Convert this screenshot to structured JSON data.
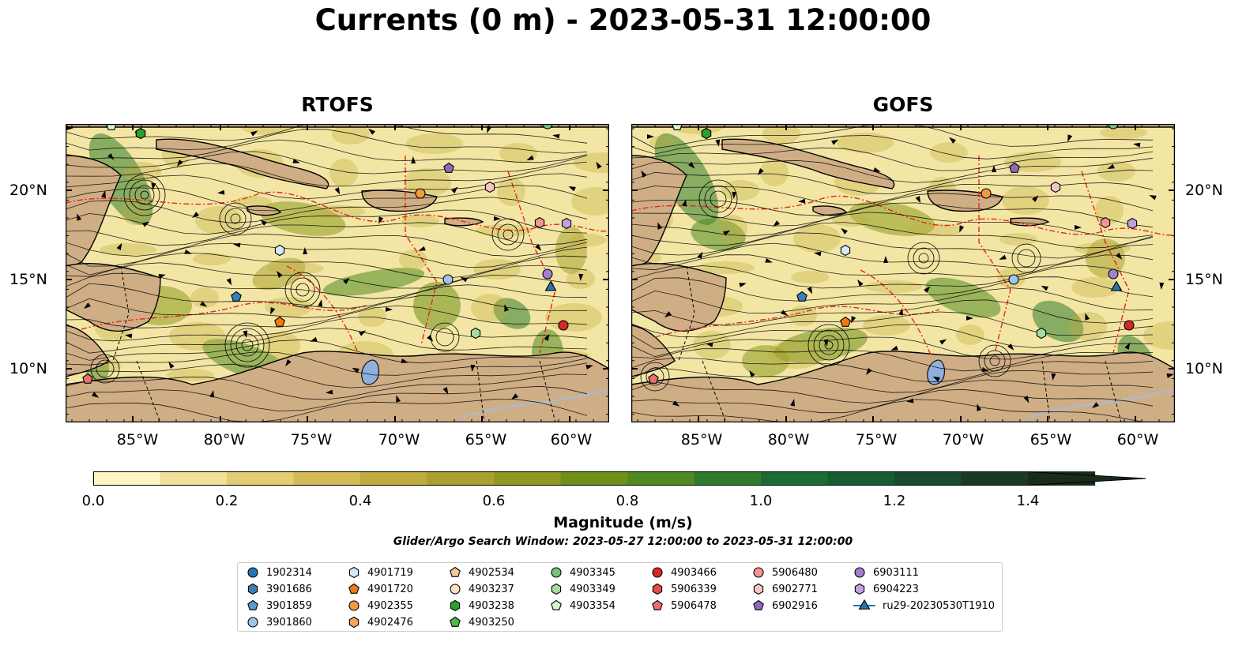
{
  "figure": {
    "title": "Currents (0 m) - 2023-05-31 12:00:00"
  },
  "panels": [
    {
      "title": "RTOFS"
    },
    {
      "title": "GOFS"
    }
  ],
  "axes": {
    "lat_ticks": [
      "20°N",
      "15°N",
      "10°N"
    ],
    "lon_ticks": [
      "85°W",
      "80°W",
      "75°W",
      "70°W",
      "65°W",
      "60°W"
    ]
  },
  "colorbar": {
    "label": "Magnitude (m/s)",
    "ticks": [
      "0.0",
      "0.2",
      "0.4",
      "0.6",
      "0.8",
      "1.0",
      "1.2",
      "1.4"
    ],
    "colors": [
      "#fff5c2",
      "#f0e098",
      "#e3cc72",
      "#d5bb55",
      "#c0ab3e",
      "#a9a030",
      "#8d9a1f",
      "#6f9017",
      "#4f8a20",
      "#2f7b2c",
      "#1a6c33",
      "#145d32",
      "#174a30",
      "#1a3a27",
      "#1a2b1c"
    ]
  },
  "search_window": "Glider/Argo Search Window: 2023-05-27 12:00:00 to 2023-05-31 12:00:00",
  "legend": {
    "columns": [
      [
        {
          "label": "1902314",
          "marker": "circle",
          "color": "#1f77b4"
        },
        {
          "label": "3901686",
          "marker": "hexagon",
          "color": "#3a7fb5"
        },
        {
          "label": "3901859",
          "marker": "pentagon",
          "color": "#5b9bd1"
        },
        {
          "label": "3901860",
          "marker": "circle",
          "color": "#9ec6e8"
        }
      ],
      [
        {
          "label": "4901719",
          "marker": "hexagon",
          "color": "#d4e9f9"
        },
        {
          "label": "4901720",
          "marker": "pentagon",
          "color": "#ee7a13"
        },
        {
          "label": "4902355",
          "marker": "circle",
          "color": "#f39a3e"
        },
        {
          "label": "4902476",
          "marker": "hexagon",
          "color": "#f6a45a"
        }
      ],
      [
        {
          "label": "4902534",
          "marker": "pentagon",
          "color": "#f8c49a"
        },
        {
          "label": "4903237",
          "marker": "circle",
          "color": "#fde0c2"
        },
        {
          "label": "4903238",
          "marker": "hexagon",
          "color": "#2ca02c"
        },
        {
          "label": "4903250",
          "marker": "pentagon",
          "color": "#4bb84b"
        }
      ],
      [
        {
          "label": "4903345",
          "marker": "circle",
          "color": "#74c476"
        },
        {
          "label": "4903349",
          "marker": "hexagon",
          "color": "#a6dd9c"
        },
        {
          "label": "4903354",
          "marker": "pentagon",
          "color": "#d6f5cf"
        }
      ],
      [
        {
          "label": "4903466",
          "marker": "circle",
          "color": "#d62728"
        },
        {
          "label": "5906339",
          "marker": "hexagon",
          "color": "#e34a4a"
        },
        {
          "label": "5906478",
          "marker": "pentagon",
          "color": "#ec6f6f"
        }
      ],
      [
        {
          "label": "5906480",
          "marker": "circle",
          "color": "#f49494"
        },
        {
          "label": "6902771",
          "marker": "hexagon",
          "color": "#f9c4c4"
        },
        {
          "label": "6902916",
          "marker": "pentagon",
          "color": "#9467bd"
        }
      ],
      [
        {
          "label": "6903111",
          "marker": "circle",
          "color": "#a47fcf"
        },
        {
          "label": "6904223",
          "marker": "hexagon",
          "color": "#bfa2e0"
        },
        {
          "label": "ru29-20230530T1910",
          "marker": "triangle-line",
          "color": "#1f77b4"
        }
      ]
    ]
  }
}
